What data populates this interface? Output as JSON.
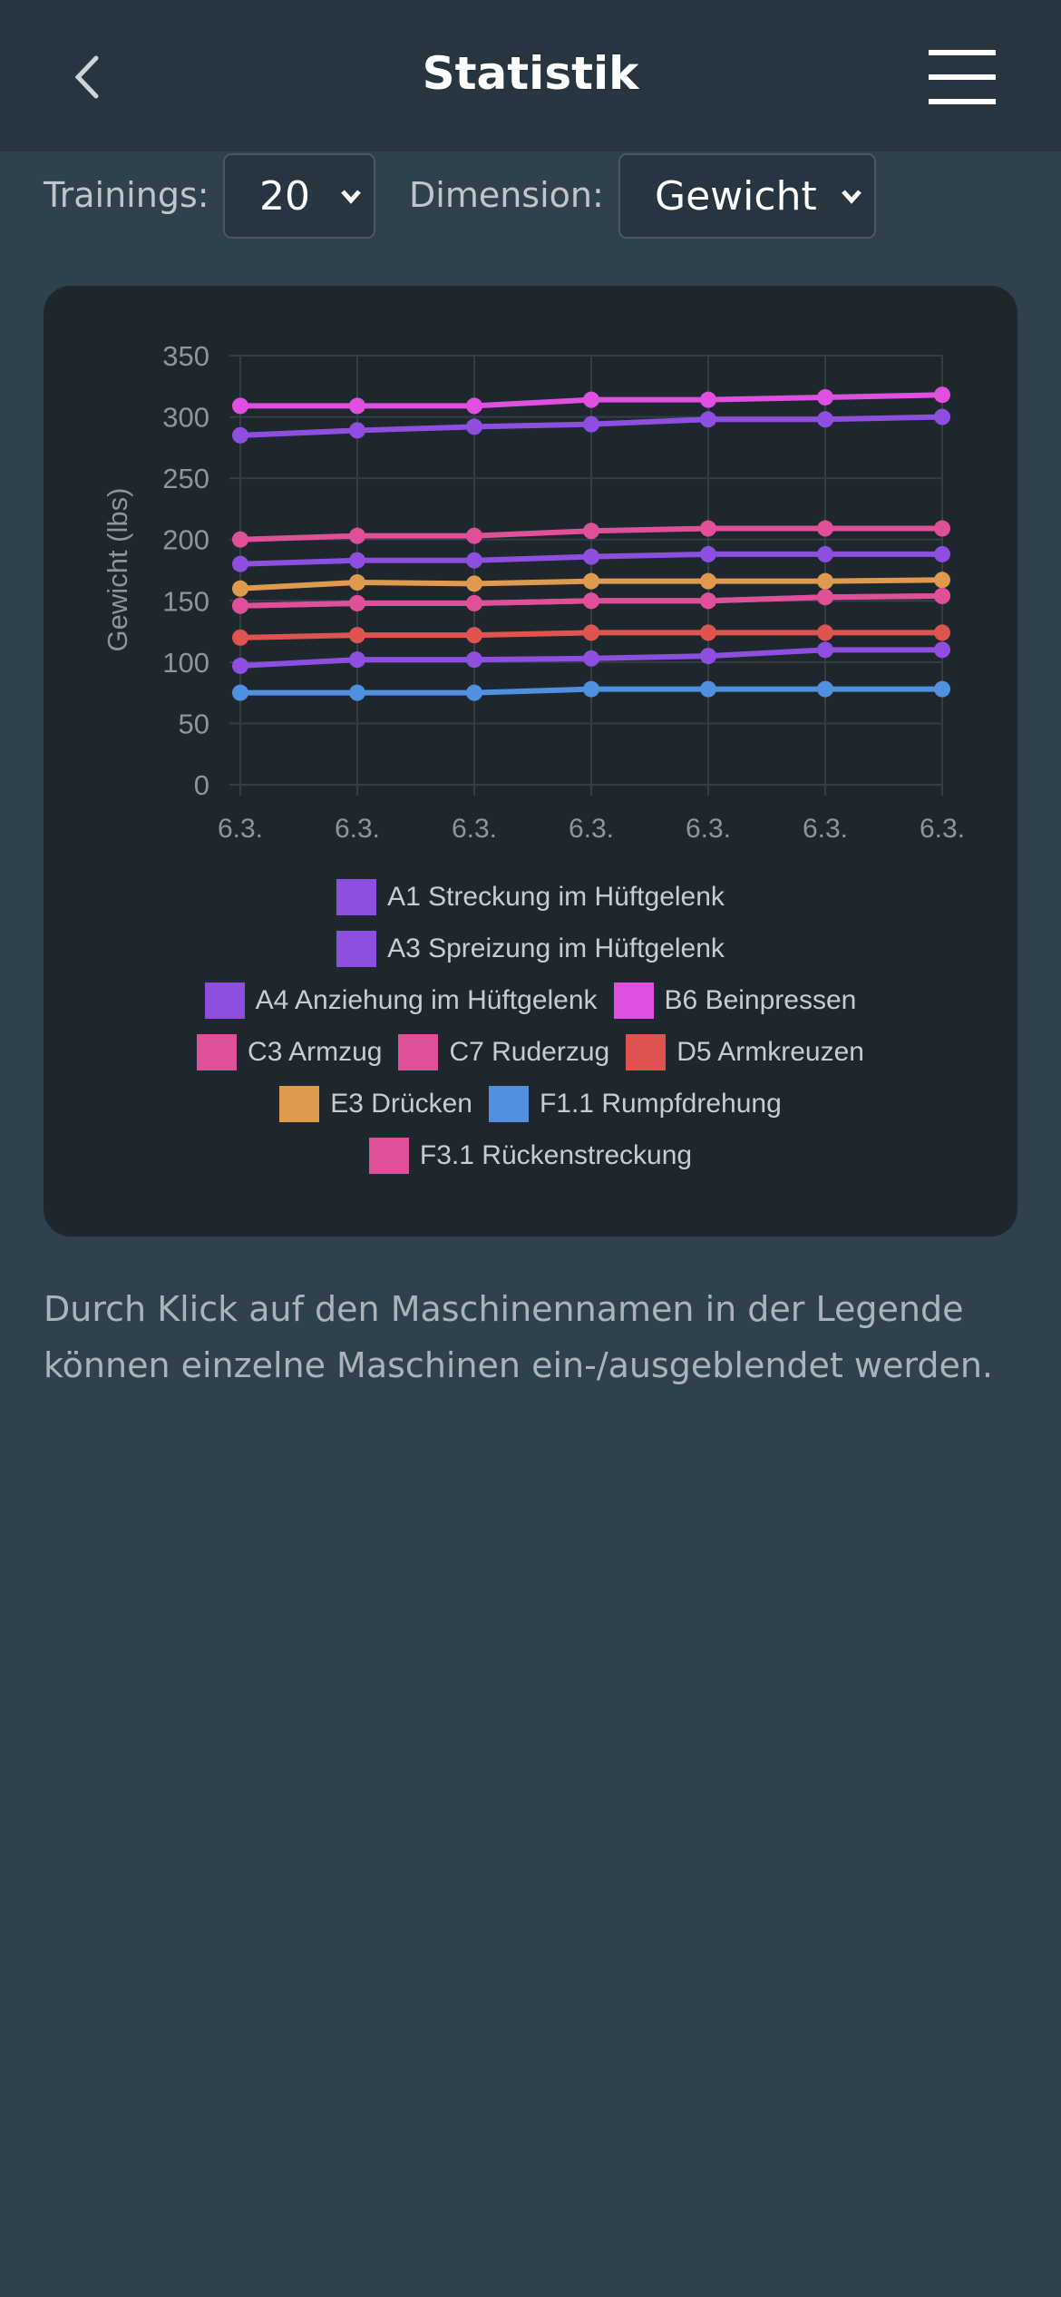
{
  "header": {
    "title": "Statistik",
    "back_icon": "chevron-left-icon",
    "menu_icon": "hamburger-menu-icon"
  },
  "controls": {
    "trainings_label": "Trainings:",
    "trainings_value": "20",
    "dimension_label": "Dimension:",
    "dimension_value": "Gewicht"
  },
  "chart_data": {
    "type": "line",
    "xlabel": "",
    "ylabel": "Gewicht (lbs)",
    "ylim": [
      0,
      350
    ],
    "yticks": [
      "0",
      "50",
      "100",
      "150",
      "200",
      "250",
      "300",
      "350"
    ],
    "categories": [
      "6.3.",
      "6.3.",
      "6.3.",
      "6.3.",
      "6.3.",
      "6.3.",
      "6.3."
    ],
    "grid": true,
    "legend_placement": "bottom",
    "series": [
      {
        "name": "A1 Streckung im Hüftgelenk",
        "color": "#8e4fe0",
        "values": [
          285,
          289,
          292,
          294,
          298,
          298,
          300
        ]
      },
      {
        "name": "A3 Spreizung im Hüftgelenk",
        "color": "#8e4fe0",
        "values": [
          180,
          183,
          183,
          186,
          188,
          188,
          188
        ]
      },
      {
        "name": "A4 Anziehung im Hüftgelenk",
        "color": "#8e4fe0",
        "values": [
          97,
          102,
          102,
          103,
          105,
          110,
          110
        ]
      },
      {
        "name": "B6 Beinpressen",
        "color": "#e050e0",
        "values": [
          309,
          309,
          309,
          314,
          314,
          316,
          318
        ]
      },
      {
        "name": "C3 Armzug",
        "color": "#e05098",
        "values": [
          200,
          203,
          203,
          207,
          209,
          209,
          209
        ]
      },
      {
        "name": "C7 Ruderzug",
        "color": "#e05098",
        "values": [
          146,
          148,
          148,
          150,
          150,
          153,
          154
        ]
      },
      {
        "name": "D5 Armkreuzen",
        "color": "#e05450",
        "values": [
          120,
          122,
          122,
          124,
          124,
          124,
          124
        ]
      },
      {
        "name": "E3 Drücken",
        "color": "#e09a50",
        "values": [
          160,
          165,
          164,
          166,
          166,
          166,
          167
        ]
      },
      {
        "name": "F1.1 Rumpfdrehung",
        "color": "#5090e0",
        "values": [
          75,
          75,
          75,
          78,
          78,
          78,
          78
        ]
      },
      {
        "name": "F3.1 Rückenstreckung",
        "color": "#e05098",
        "values": [
          146,
          148,
          148,
          150,
          150,
          153,
          154
        ]
      }
    ]
  },
  "hint": "Durch Klick auf den Maschinennamen in der Legende können einzelne Maschinen ein-/ausgeblendet werden."
}
